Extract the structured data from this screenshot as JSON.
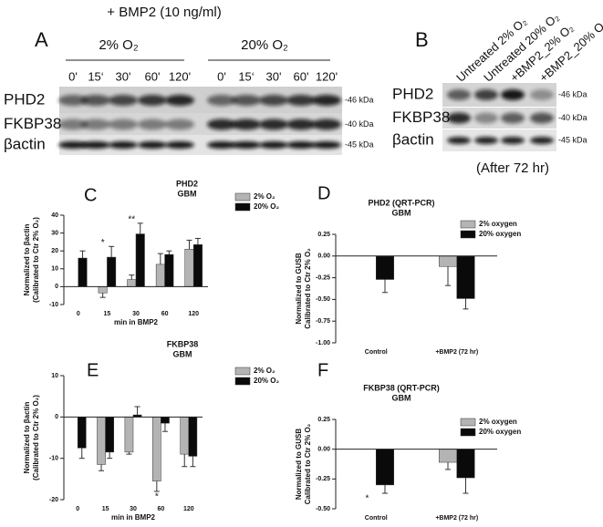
{
  "panels": {
    "a": {
      "letter": "A",
      "treatment": "+ BMP2 (10 ng/ml)",
      "groups": [
        "2% O₂",
        "20% O₂"
      ],
      "lanes": [
        "0'",
        "15‘",
        "30'",
        "60'",
        "120'",
        "0'",
        "15‘",
        "30'",
        "60'",
        "120'"
      ],
      "rows": [
        "PHD2",
        "FKBP38",
        "βactin"
      ],
      "markers": [
        "-46 kDa",
        "-40 kDa",
        "-45 kDa"
      ]
    },
    "b": {
      "letter": "B",
      "lanes": [
        "Untreated 2% O₂",
        "Untreated 20% O₂",
        "+BMP2_2% O₂",
        "+BMP2_20% O₂"
      ],
      "rows": [
        "PHD2",
        "FKBP38",
        "βactin"
      ],
      "markers": [
        "-46 kDa",
        "-40 kDa",
        "-45 kDa"
      ],
      "note": "(After 72 hr)"
    }
  },
  "chart_data": [
    {
      "type": "bar",
      "letter": "C",
      "title": "PHD2",
      "subtitle": "GBM",
      "ylabel": [
        "Normalized to βactin",
        "(Calibrated to Ctr 2% O₂)"
      ],
      "xlabel": "min in BMP2",
      "categories": [
        "0",
        "15",
        "30",
        "60",
        "120"
      ],
      "series": [
        {
          "name": "2% O₂",
          "color": "#b4b4b4",
          "values": [
            null,
            -3.5,
            4,
            12.5,
            21
          ],
          "errors": [
            null,
            2.5,
            2.5,
            6,
            5
          ]
        },
        {
          "name": "20% O₂",
          "color": "#0a0a0a",
          "values": [
            16,
            16.5,
            29.5,
            18,
            23.5
          ],
          "errors": [
            4,
            6,
            6,
            2,
            3.5
          ]
        }
      ],
      "annotations": [
        null,
        "*",
        "**",
        null,
        null
      ],
      "ylim": [
        -10,
        40
      ],
      "yticks": [
        -10,
        0,
        10,
        20,
        30,
        40
      ]
    },
    {
      "type": "bar",
      "letter": "D",
      "title": "PHD2 (QRT-PCR)",
      "subtitle": "GBM",
      "ylabel": [
        "Normalized to GUSB",
        "Calibrated to Ctr 2% O₂"
      ],
      "categories": [
        "Control",
        "+BMP2 (72 hr)"
      ],
      "series": [
        {
          "name": "2% oxygen",
          "color": "#b4b4b4",
          "values": [
            null,
            -0.12
          ],
          "errors": [
            null,
            0.22
          ]
        },
        {
          "name": "20% oxygen",
          "color": "#0a0a0a",
          "values": [
            -0.27,
            -0.49
          ],
          "errors": [
            0.15,
            0.12
          ]
        }
      ],
      "ylim": [
        -1,
        0.25
      ],
      "yticks": [
        {
          "value": 0.25,
          "label": "0.25"
        },
        {
          "value": 0,
          "label": "0.00"
        },
        {
          "value": -0.25,
          "label": "-0.25"
        },
        {
          "value": -0.5,
          "label": "-0.50"
        },
        {
          "value": -0.75,
          "label": "-0.75"
        },
        {
          "value": -1,
          "label": "-1.00"
        }
      ]
    },
    {
      "type": "bar",
      "letter": "E",
      "title": "FKBP38",
      "subtitle": "GBM",
      "ylabel": [
        "Normalized to βactin",
        "(Calibrated to Ctr 2% O₂)"
      ],
      "xlabel": "min in BMP2",
      "categories": [
        "0",
        "15",
        "30",
        "60",
        "120"
      ],
      "series": [
        {
          "name": "2% O₂",
          "color": "#b4b4b4",
          "values": [
            null,
            -11.5,
            -8.5,
            -15.5,
            -9
          ],
          "errors": [
            null,
            1.5,
            0.5,
            2.5,
            3
          ]
        },
        {
          "name": "20% O₂",
          "color": "#0a0a0a",
          "values": [
            -7.5,
            -8.5,
            0.5,
            -1.5,
            -9.5
          ],
          "errors": [
            2.5,
            1.5,
            2,
            2,
            2.5
          ]
        }
      ],
      "annotations": [
        null,
        null,
        null,
        "*",
        null
      ],
      "ylim": [
        -20,
        10
      ],
      "yticks": [
        -20,
        -10,
        0,
        10
      ]
    },
    {
      "type": "bar",
      "letter": "F",
      "title": "FKBP38 (QRT-PCR)",
      "subtitle": "GBM",
      "ylabel": [
        "Normalized to GUSB",
        "Calibrated to Ctr 2% O₂"
      ],
      "categories": [
        "Control",
        "+BMP2 (72 hr)"
      ],
      "series": [
        {
          "name": "2% oxygen",
          "color": "#b4b4b4",
          "values": [
            null,
            -0.11
          ],
          "errors": [
            null,
            0.06
          ]
        },
        {
          "name": "20% oxygen",
          "color": "#0a0a0a",
          "values": [
            -0.3,
            -0.24
          ],
          "errors": [
            0.07,
            0.13
          ]
        }
      ],
      "annotations": [
        "*",
        null
      ],
      "ylim": [
        -0.5,
        0.25
      ],
      "yticks": [
        {
          "value": 0.25,
          "label": "0.25"
        },
        {
          "value": 0,
          "label": "0.00"
        },
        {
          "value": -0.25,
          "label": "-0.25"
        },
        {
          "value": -0.5,
          "label": "-0.50"
        }
      ]
    }
  ]
}
